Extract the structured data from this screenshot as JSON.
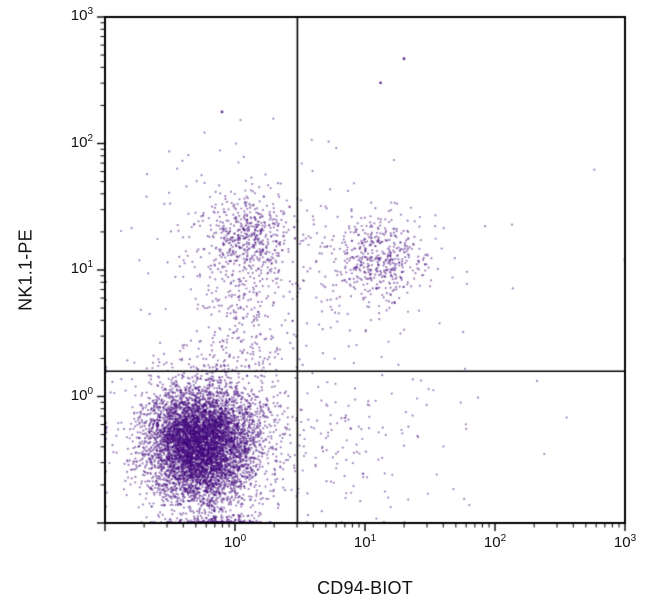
{
  "chart_data": {
    "type": "scatter",
    "title": "",
    "xlabel": "CD94-BIOT",
    "ylabel": "NK1.1-PE",
    "x_scale": "log",
    "y_scale": "log",
    "xlim_log": [
      -1,
      3
    ],
    "ylim_log": [
      -1,
      3
    ],
    "tick_base": "10",
    "x_tick_exponents": [
      0,
      1,
      2,
      3
    ],
    "y_tick_exponents": [
      0,
      1,
      2,
      3
    ],
    "grid": false,
    "legend": null,
    "point_color": "#440a7e",
    "frame_color": "#000000",
    "quadrant_gate": {
      "x_log": 0.48,
      "x_value": 3.0,
      "y_log": 0.2,
      "y_value": 1.6
    },
    "clusters": [
      {
        "name": "double-negative-core",
        "cx": -0.27,
        "cy": -0.38,
        "sx": 0.2,
        "sy": 0.22,
        "n": 6000
      },
      {
        "name": "double-negative-halo",
        "cx": -0.18,
        "cy": -0.3,
        "sx": 0.34,
        "sy": 0.3,
        "n": 900
      },
      {
        "name": "bottom-edge-pile",
        "cx": -0.15,
        "cy": -1.0,
        "sx": 0.16,
        "sy": 0.05,
        "n": 170
      },
      {
        "name": "bridge-column",
        "cx": 0.08,
        "cy": 0.55,
        "sx": 0.16,
        "sy": 0.42,
        "n": 240
      },
      {
        "name": "nk-pos-cd94-neg-core",
        "cx": 0.1,
        "cy": 1.26,
        "sx": 0.16,
        "sy": 0.15,
        "n": 420
      },
      {
        "name": "nk-pos-cd94-neg-halo",
        "cx": 0.02,
        "cy": 1.15,
        "sx": 0.36,
        "sy": 0.4,
        "n": 240
      },
      {
        "name": "double-positive-core",
        "cx": 1.1,
        "cy": 1.08,
        "sx": 0.17,
        "sy": 0.15,
        "n": 380
      },
      {
        "name": "double-positive-halo",
        "cx": 1.02,
        "cy": 1.02,
        "sx": 0.32,
        "sy": 0.3,
        "n": 150
      },
      {
        "name": "cd94-pos-nk-neg-sparse",
        "cx": 0.85,
        "cy": -0.35,
        "sx": 0.42,
        "sy": 0.33,
        "n": 130
      },
      {
        "name": "background-sparse",
        "cx": 0.55,
        "cy": 0.35,
        "sx": 1.05,
        "sy": 0.95,
        "n": 70
      }
    ],
    "outliers": [
      {
        "x_log": 1.3,
        "y_log": 2.67
      },
      {
        "x_log": 1.12,
        "y_log": 2.48
      },
      {
        "x_log": -0.1,
        "y_log": 2.25
      }
    ]
  }
}
